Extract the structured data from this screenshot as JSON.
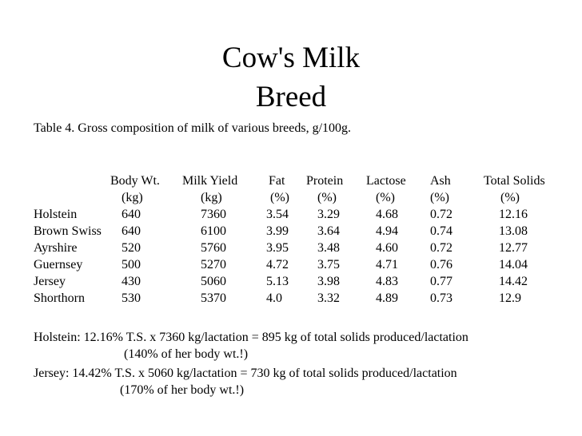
{
  "title": {
    "line1": "Cow's Milk",
    "line2": "Breed"
  },
  "caption": "Table 4. Gross composition of milk of various breeds, g/100g.",
  "table": {
    "headers": [
      {
        "label": "Body Wt.",
        "unit": "(kg)"
      },
      {
        "label": "Milk Yield",
        "unit": "(kg)"
      },
      {
        "label": "Fat",
        "unit": "(%)"
      },
      {
        "label": "Protein",
        "unit": "(%)"
      },
      {
        "label": "Lactose",
        "unit": "(%)"
      },
      {
        "label": "Ash",
        "unit": "(%)"
      },
      {
        "label": "Total Solids",
        "unit": "(%)"
      }
    ],
    "rows": [
      {
        "breed": "Holstein",
        "values": [
          "640",
          "7360",
          "3.54",
          "3.29",
          "4.68",
          "0.72",
          "12.16"
        ]
      },
      {
        "breed": "Brown Swiss",
        "values": [
          "640",
          "6100",
          "3.99",
          "3.64",
          "4.94",
          "0.74",
          "13.08"
        ]
      },
      {
        "breed": "Ayrshire",
        "values": [
          "520",
          "5760",
          "3.95",
          "3.48",
          "4.60",
          "0.72",
          "12.77"
        ]
      },
      {
        "breed": "Guernsey",
        "values": [
          "500",
          "5270",
          "4.72",
          "3.75",
          "4.71",
          "0.76",
          "14.04"
        ]
      },
      {
        "breed": "Jersey",
        "values": [
          "430",
          "5060",
          "5.13",
          "3.98",
          "4.83",
          "0.77",
          "14.42"
        ]
      },
      {
        "breed": "Shorthorn",
        "values": [
          "530",
          "5370",
          "4.0",
          "3.32",
          "4.89",
          "0.73",
          "12.9"
        ]
      }
    ]
  },
  "notes": {
    "holstein_line1": "Holstein: 12.16% T.S. x 7360 kg/lactation = 895 kg of total solids produced/lactation",
    "holstein_line2": "(140% of her body wt.!)",
    "jersey_line1": "Jersey: 14.42% T.S. x 5060 kg/lactation = 730 kg of total solids produced/lactation",
    "jersey_line2": "(170% of her body wt.!)"
  }
}
